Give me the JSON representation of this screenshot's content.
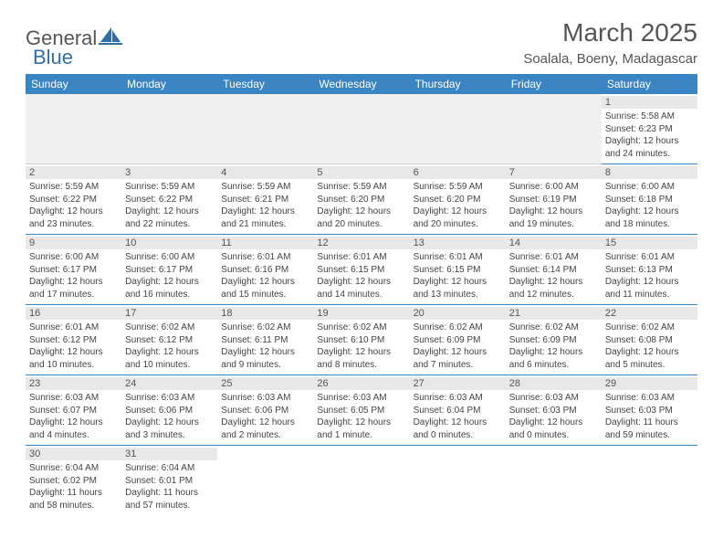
{
  "logo": {
    "text1": "General",
    "text2": "Blue",
    "color1": "#666666",
    "color2": "#2f6fa8"
  },
  "title": "March 2025",
  "location": "Soalala, Boeny, Madagascar",
  "header_bg": "#3b84c4",
  "daynum_bg": "#e8e8e8",
  "divider_color": "#3b84c4",
  "font_family": "Arial",
  "text_color": "#444444",
  "columns": [
    "Sunday",
    "Monday",
    "Tuesday",
    "Wednesday",
    "Thursday",
    "Friday",
    "Saturday"
  ],
  "weeks": [
    [
      null,
      null,
      null,
      null,
      null,
      null,
      {
        "n": "1",
        "sunrise": "5:58 AM",
        "sunset": "6:23 PM",
        "daylight": "12 hours and 24 minutes."
      }
    ],
    [
      {
        "n": "2",
        "sunrise": "5:59 AM",
        "sunset": "6:22 PM",
        "daylight": "12 hours and 23 minutes."
      },
      {
        "n": "3",
        "sunrise": "5:59 AM",
        "sunset": "6:22 PM",
        "daylight": "12 hours and 22 minutes."
      },
      {
        "n": "4",
        "sunrise": "5:59 AM",
        "sunset": "6:21 PM",
        "daylight": "12 hours and 21 minutes."
      },
      {
        "n": "5",
        "sunrise": "5:59 AM",
        "sunset": "6:20 PM",
        "daylight": "12 hours and 20 minutes."
      },
      {
        "n": "6",
        "sunrise": "5:59 AM",
        "sunset": "6:20 PM",
        "daylight": "12 hours and 20 minutes."
      },
      {
        "n": "7",
        "sunrise": "6:00 AM",
        "sunset": "6:19 PM",
        "daylight": "12 hours and 19 minutes."
      },
      {
        "n": "8",
        "sunrise": "6:00 AM",
        "sunset": "6:18 PM",
        "daylight": "12 hours and 18 minutes."
      }
    ],
    [
      {
        "n": "9",
        "sunrise": "6:00 AM",
        "sunset": "6:17 PM",
        "daylight": "12 hours and 17 minutes."
      },
      {
        "n": "10",
        "sunrise": "6:00 AM",
        "sunset": "6:17 PM",
        "daylight": "12 hours and 16 minutes."
      },
      {
        "n": "11",
        "sunrise": "6:01 AM",
        "sunset": "6:16 PM",
        "daylight": "12 hours and 15 minutes."
      },
      {
        "n": "12",
        "sunrise": "6:01 AM",
        "sunset": "6:15 PM",
        "daylight": "12 hours and 14 minutes."
      },
      {
        "n": "13",
        "sunrise": "6:01 AM",
        "sunset": "6:15 PM",
        "daylight": "12 hours and 13 minutes."
      },
      {
        "n": "14",
        "sunrise": "6:01 AM",
        "sunset": "6:14 PM",
        "daylight": "12 hours and 12 minutes."
      },
      {
        "n": "15",
        "sunrise": "6:01 AM",
        "sunset": "6:13 PM",
        "daylight": "12 hours and 11 minutes."
      }
    ],
    [
      {
        "n": "16",
        "sunrise": "6:01 AM",
        "sunset": "6:12 PM",
        "daylight": "12 hours and 10 minutes."
      },
      {
        "n": "17",
        "sunrise": "6:02 AM",
        "sunset": "6:12 PM",
        "daylight": "12 hours and 10 minutes."
      },
      {
        "n": "18",
        "sunrise": "6:02 AM",
        "sunset": "6:11 PM",
        "daylight": "12 hours and 9 minutes."
      },
      {
        "n": "19",
        "sunrise": "6:02 AM",
        "sunset": "6:10 PM",
        "daylight": "12 hours and 8 minutes."
      },
      {
        "n": "20",
        "sunrise": "6:02 AM",
        "sunset": "6:09 PM",
        "daylight": "12 hours and 7 minutes."
      },
      {
        "n": "21",
        "sunrise": "6:02 AM",
        "sunset": "6:09 PM",
        "daylight": "12 hours and 6 minutes."
      },
      {
        "n": "22",
        "sunrise": "6:02 AM",
        "sunset": "6:08 PM",
        "daylight": "12 hours and 5 minutes."
      }
    ],
    [
      {
        "n": "23",
        "sunrise": "6:03 AM",
        "sunset": "6:07 PM",
        "daylight": "12 hours and 4 minutes."
      },
      {
        "n": "24",
        "sunrise": "6:03 AM",
        "sunset": "6:06 PM",
        "daylight": "12 hours and 3 minutes."
      },
      {
        "n": "25",
        "sunrise": "6:03 AM",
        "sunset": "6:06 PM",
        "daylight": "12 hours and 2 minutes."
      },
      {
        "n": "26",
        "sunrise": "6:03 AM",
        "sunset": "6:05 PM",
        "daylight": "12 hours and 1 minute."
      },
      {
        "n": "27",
        "sunrise": "6:03 AM",
        "sunset": "6:04 PM",
        "daylight": "12 hours and 0 minutes."
      },
      {
        "n": "28",
        "sunrise": "6:03 AM",
        "sunset": "6:03 PM",
        "daylight": "12 hours and 0 minutes."
      },
      {
        "n": "29",
        "sunrise": "6:03 AM",
        "sunset": "6:03 PM",
        "daylight": "11 hours and 59 minutes."
      }
    ],
    [
      {
        "n": "30",
        "sunrise": "6:04 AM",
        "sunset": "6:02 PM",
        "daylight": "11 hours and 58 minutes."
      },
      {
        "n": "31",
        "sunrise": "6:04 AM",
        "sunset": "6:01 PM",
        "daylight": "11 hours and 57 minutes."
      },
      null,
      null,
      null,
      null,
      null
    ]
  ],
  "labels": {
    "sunrise": "Sunrise:",
    "sunset": "Sunset:",
    "daylight": "Daylight:"
  }
}
